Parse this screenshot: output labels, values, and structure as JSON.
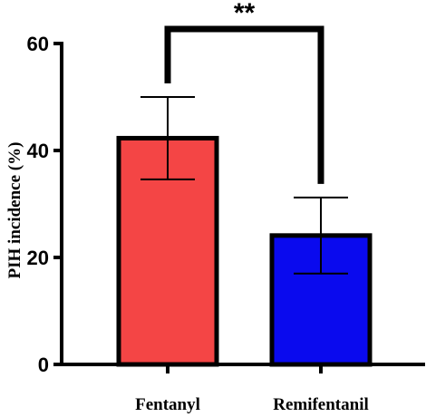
{
  "chart_data": {
    "type": "bar",
    "categories": [
      "Fentanyl",
      "Remifentanil"
    ],
    "values": [
      42.3,
      24.1
    ],
    "error": [
      {
        "low": 34.6,
        "high": 50.0
      },
      {
        "low": 17.0,
        "high": 31.2
      }
    ],
    "colors": [
      "#f44545",
      "#0a0aee"
    ],
    "title": "",
    "xlabel": "",
    "ylabel": "PIH incidence (%)",
    "ylim": [
      0,
      60
    ],
    "yticks": [
      0,
      20,
      40,
      60
    ],
    "grid": false,
    "significance": {
      "label": "**",
      "between": [
        0,
        1
      ]
    }
  }
}
